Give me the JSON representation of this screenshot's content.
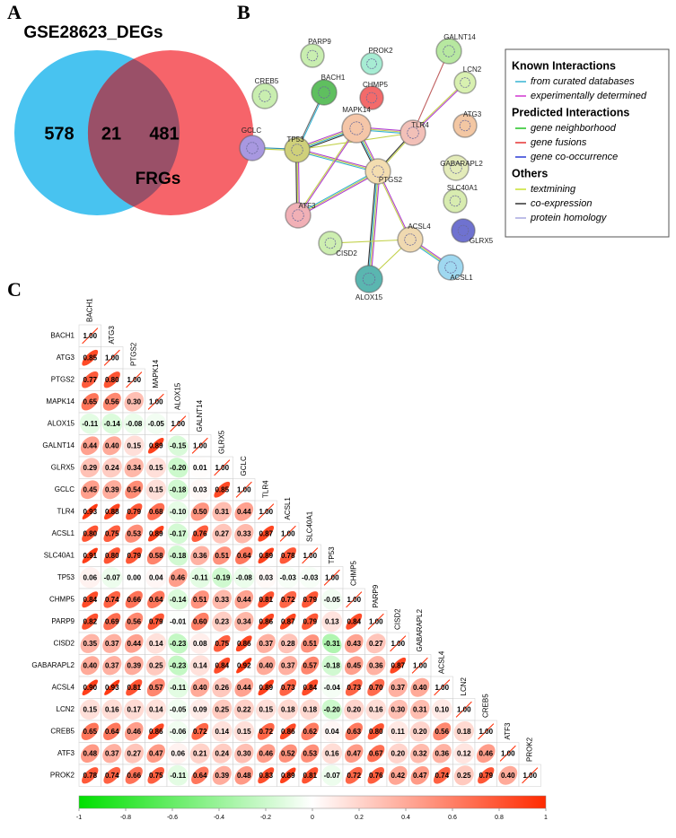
{
  "panels": {
    "a": "A",
    "b": "B",
    "c": "C"
  },
  "venn": {
    "left_label": "GSE28623_DEGs",
    "right_label": "FRGs",
    "left_only": "578",
    "overlap": "21",
    "right_only": "481"
  },
  "network": {
    "nodes": [
      "PARP9",
      "PROK2",
      "GALNT14",
      "CREB5",
      "BACH1",
      "CHMP5",
      "LCN2",
      "GCLC",
      "TP53",
      "MAPK14",
      "TLR4",
      "ATG3",
      "GABARAPL2",
      "PTGS2",
      "SLC40A1",
      "ATF3",
      "CISD2",
      "ACSL4",
      "GLRX5",
      "ALOX15",
      "ACSL1"
    ],
    "legend": [
      {
        "heading": "Known Interactions",
        "items": [
          "from curated databases",
          "experimentally determined"
        ]
      },
      {
        "heading": "Predicted Interactions",
        "items": [
          "gene neighborhood",
          "gene fusions",
          "gene co-occurrence"
        ]
      },
      {
        "heading": "Others",
        "items": [
          "textmining",
          "co-expression",
          "protein homology"
        ]
      }
    ]
  },
  "correlation": {
    "genes": [
      "BACH1",
      "ATG3",
      "PTGS2",
      "MAPK14",
      "ALOX15",
      "GALNT14",
      "GLRX5",
      "GCLC",
      "TLR4",
      "ACSL1",
      "SLC40A1",
      "TP53",
      "CHMP5",
      "PARP9",
      "CISD2",
      "GABARAPL2",
      "ACSL4",
      "LCN2",
      "CREB5",
      "ATF3",
      "PROK2"
    ],
    "values": [
      [
        1
      ],
      [
        0.85,
        1
      ],
      [
        0.77,
        0.8,
        1
      ],
      [
        0.65,
        0.56,
        0.3,
        1
      ],
      [
        -0.11,
        -0.14,
        -0.08,
        -0.05,
        1
      ],
      [
        0.44,
        0.4,
        0.15,
        0.89,
        -0.15,
        1
      ],
      [
        0.29,
        0.24,
        0.34,
        0.15,
        -0.2,
        0.01,
        1
      ],
      [
        0.45,
        0.39,
        0.54,
        0.15,
        -0.18,
        0.03,
        0.85,
        1
      ],
      [
        0.93,
        0.88,
        0.79,
        0.68,
        -0.1,
        0.5,
        0.31,
        0.44,
        1
      ],
      [
        0.8,
        0.75,
        0.53,
        0.89,
        -0.17,
        0.76,
        0.27,
        0.33,
        0.87,
        1
      ],
      [
        0.91,
        0.8,
        0.79,
        0.58,
        -0.18,
        0.36,
        0.51,
        0.64,
        0.89,
        0.78,
        1
      ],
      [
        0.06,
        -0.07,
        0,
        0.04,
        0.46,
        -0.11,
        -0.19,
        -0.08,
        0.03,
        -0.03,
        -0.03,
        1
      ],
      [
        0.84,
        0.74,
        0.66,
        0.64,
        -0.14,
        0.51,
        0.33,
        0.44,
        0.81,
        0.72,
        0.79,
        -0.05,
        1
      ],
      [
        0.82,
        0.69,
        0.56,
        0.79,
        -0.01,
        0.6,
        0.23,
        0.34,
        0.86,
        0.87,
        0.79,
        0.13,
        0.84,
        1
      ],
      [
        0.35,
        0.37,
        0.44,
        0.14,
        -0.23,
        0.08,
        0.75,
        0.86,
        0.37,
        0.28,
        0.51,
        -0.31,
        0.43,
        0.27,
        1
      ],
      [
        0.4,
        0.37,
        0.39,
        0.25,
        -0.23,
        0.14,
        0.84,
        0.92,
        0.4,
        0.37,
        0.57,
        -0.18,
        0.45,
        0.36,
        0.87,
        1
      ],
      [
        0.9,
        0.93,
        0.81,
        0.57,
        -0.11,
        0.4,
        0.26,
        0.44,
        0.89,
        0.73,
        0.84,
        -0.04,
        0.73,
        0.7,
        0.37,
        0.4,
        1
      ],
      [
        0.15,
        0.16,
        0.17,
        0.14,
        -0.05,
        0.09,
        0.25,
        0.22,
        0.15,
        0.18,
        0.18,
        -0.2,
        0.2,
        0.16,
        0.3,
        0.31,
        0.1,
        1
      ],
      [
        0.65,
        0.64,
        0.46,
        0.86,
        -0.06,
        0.72,
        0.14,
        0.15,
        0.72,
        0.86,
        0.62,
        0.04,
        0.63,
        0.8,
        0.11,
        0.2,
        0.56,
        0.18,
        1
      ],
      [
        0.48,
        0.37,
        0.27,
        0.47,
        0.06,
        0.21,
        0.24,
        0.3,
        0.46,
        0.52,
        0.53,
        0.16,
        0.47,
        0.67,
        0.2,
        0.32,
        0.36,
        0.12,
        0.46,
        1
      ],
      [
        0.78,
        0.74,
        0.66,
        0.75,
        -0.11,
        0.64,
        0.39,
        0.48,
        0.83,
        0.89,
        0.81,
        -0.07,
        0.72,
        0.76,
        0.42,
        0.47,
        0.74,
        0.25,
        0.79,
        0.4,
        1
      ]
    ],
    "value_labels": [
      [
        "1.00"
      ],
      [
        "0.85",
        "1.00"
      ],
      [
        "0.77",
        "0.80",
        "1.00"
      ],
      [
        "0.65",
        "0.56",
        "0.30",
        "1.00"
      ],
      [
        "-0.11",
        "-0.14",
        "-0.08",
        "-0.05",
        "1.00"
      ],
      [
        "0.44",
        "0.40",
        "0.15",
        "0.89",
        "-0.15",
        "1.00"
      ],
      [
        "0.29",
        "0.24",
        "0.34",
        "0.15",
        "-0.20",
        "0.01",
        "1.00"
      ],
      [
        "0.45",
        "0.39",
        "0.54",
        "0.15",
        "-0.18",
        "0.03",
        "0.85",
        "1.00"
      ],
      [
        "0.93",
        "0.88",
        "0.79",
        "0.68",
        "-0.10",
        "0.50",
        "0.31",
        "0.44",
        "1.00"
      ],
      [
        "0.80",
        "0.75",
        "0.53",
        "0.89",
        "-0.17",
        "0.76",
        "0.27",
        "0.33",
        "0.87",
        "1.00"
      ],
      [
        "0.91",
        "0.80",
        "0.79",
        "0.58",
        "-0.18",
        "0.36",
        "0.51",
        "0.64",
        "0.89",
        "0.78",
        "1.00"
      ],
      [
        "0.06",
        "-0.07",
        "0.00",
        "0.04",
        "0.46",
        "-0.11",
        "-0.19",
        "-0.08",
        "0.03",
        "-0.03",
        "-0.03",
        "1.00"
      ],
      [
        "0.84",
        "0.74",
        "0.66",
        "0.64",
        "-0.14",
        "0.51",
        "0.33",
        "0.44",
        "0.81",
        "0.72",
        "0.79",
        "-0.05",
        "1.00"
      ],
      [
        "0.82",
        "0.69",
        "0.56",
        "0.79",
        "-0.01",
        "0.60",
        "0.23",
        "0.34",
        "0.86",
        "0.87",
        "0.79",
        "0.13",
        "0.84",
        "1.00"
      ],
      [
        "0.35",
        "0.37",
        "0.44",
        "0.14",
        "-0.23",
        "0.08",
        "0.75",
        "0.86",
        "0.37",
        "0.28",
        "0.51",
        "-0.31",
        "0.43",
        "0.27",
        "1.00"
      ],
      [
        "0.40",
        "0.37",
        "0.39",
        "0.25",
        "-0.23",
        "0.14",
        "0.84",
        "0.92",
        "0.40",
        "0.37",
        "0.57",
        "-0.18",
        "0.45",
        "0.36",
        "0.87",
        "1.00"
      ],
      [
        "0.90",
        "0.93",
        "0.81",
        "0.57",
        "-0.11",
        "0.40",
        "0.26",
        "0.44",
        "0.89",
        "0.73",
        "0.84",
        "-0.04",
        "0.73",
        "0.70",
        "0.37",
        "0.40",
        "1.00"
      ],
      [
        "0.15",
        "0.16",
        "0.17",
        "0.14",
        "-0.05",
        "0.09",
        "0.25",
        "0.22",
        "0.15",
        "0.18",
        "0.18",
        "-0.20",
        "0.20",
        "0.16",
        "0.30",
        "0.31",
        "0.10",
        "1.00"
      ],
      [
        "0.65",
        "0.64",
        "0.46",
        "0.86",
        "-0.06",
        "0.72",
        "0.14",
        "0.15",
        "0.72",
        "0.86",
        "0.62",
        "0.04",
        "0.63",
        "0.80",
        "0.11",
        "0.20",
        "0.56",
        "0.18",
        "1.00"
      ],
      [
        "0.48",
        "0.37",
        "0.27",
        "0.47",
        "0.06",
        "0.21",
        "0.24",
        "0.30",
        "0.46",
        "0.52",
        "0.53",
        "0.16",
        "0.47",
        "0.67",
        "0.20",
        "0.32",
        "0.36",
        "0.12",
        "0.46",
        "1.00"
      ],
      [
        "0.78",
        "0.74",
        "0.66",
        "0.75",
        "-0.11",
        "0.64",
        "0.39",
        "0.48",
        "0.83",
        "0.89",
        "0.81",
        "-0.07",
        "0.72",
        "0.76",
        "0.42",
        "0.47",
        "0.74",
        "0.25",
        "0.79",
        "0.40",
        "1.00"
      ]
    ],
    "colorbar_ticks": [
      -1,
      -0.8,
      -0.6,
      -0.4,
      -0.2,
      0,
      0.2,
      0.4,
      0.6,
      0.8,
      1
    ],
    "colorbar_lim": [
      -1,
      1
    ]
  }
}
